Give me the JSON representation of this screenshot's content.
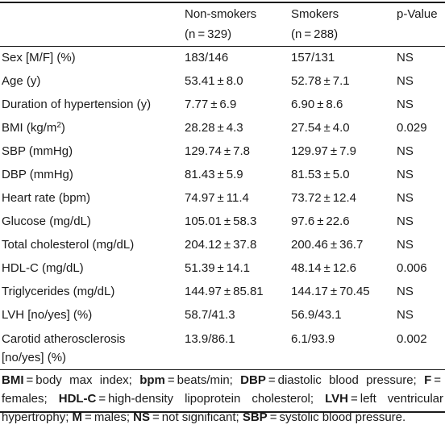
{
  "table": {
    "header": {
      "col1_line1": "Non-smokers",
      "col1_line2": "(n = 329)",
      "col2_line1": "Smokers",
      "col2_line2": "(n = 288)",
      "col3": "p-Value"
    },
    "rows": [
      {
        "label": "Sex [M/F] (%)",
        "non_smokers": "183/146",
        "smokers": "157/131",
        "p": "NS"
      },
      {
        "label": "Age (y)",
        "non_smokers": "53.41 ± 8.0",
        "smokers": "52.78 ± 7.1",
        "p": "NS"
      },
      {
        "label": "Duration of hypertension (y)",
        "non_smokers": "7.77 ± 6.9",
        "smokers": "6.90 ± 8.6",
        "p": "NS"
      },
      {
        "label": "BMI (kg/m",
        "label_sup": "2",
        "label_end": ")",
        "non_smokers": "28.28 ± 4.3",
        "smokers": "27.54 ± 4.0",
        "p": "0.029"
      },
      {
        "label": "SBP (mmHg)",
        "non_smokers": "129.74 ± 7.8",
        "smokers": "129.97 ± 7.9",
        "p": "NS"
      },
      {
        "label": "DBP (mmHg)",
        "non_smokers": "81.43 ± 5.9",
        "smokers": "81.53 ± 5.0",
        "p": "NS"
      },
      {
        "label": "Heart rate (bpm)",
        "non_smokers": "74.97 ± 11.4",
        "smokers": "73.72 ± 12.4",
        "p": "NS"
      },
      {
        "label": "Glucose (mg/dL)",
        "non_smokers": "105.01 ± 58.3",
        "smokers": "97.6 ± 22.6",
        "p": "NS"
      },
      {
        "label": "Total cholesterol (mg/dL)",
        "non_smokers": "204.12 ± 37.8",
        "smokers": "200.46 ± 36.7",
        "p": "NS"
      },
      {
        "label": "HDL-C (mg/dL)",
        "non_smokers": "51.39 ± 14.1",
        "smokers": "48.14 ± 12.6",
        "p": "0.006"
      },
      {
        "label": "Triglycerides (mg/dL)",
        "non_smokers": "144.97 ± 85.81",
        "smokers": "144.17 ± 70.45",
        "p": "NS"
      },
      {
        "label": "LVH [no/yes] (%)",
        "non_smokers": "58.7/41.3",
        "smokers": "56.9/43.1",
        "p": "NS"
      },
      {
        "label": "Carotid atherosclerosis",
        "label_line2": "[no/yes] (%)",
        "non_smokers": "13.9/86.1",
        "smokers": "6.1/93.9",
        "p": "0.002"
      }
    ]
  },
  "footnote": [
    {
      "abbr": "BMI",
      "def": " = body max index; "
    },
    {
      "abbr": "bpm",
      "def": " = beats/min; "
    },
    {
      "abbr": "DBP",
      "def": " = diastolic blood pressure; "
    },
    {
      "abbr": "F",
      "def": " = females; "
    },
    {
      "abbr": "HDL-C",
      "def": " = high-density lipoprotein cholesterol; "
    },
    {
      "abbr": "LVH",
      "def": " = left ventricular hypertrophy; "
    },
    {
      "abbr": "M",
      "def": " = males; "
    },
    {
      "abbr": "NS",
      "def": " = not significant; "
    },
    {
      "abbr": "SBP",
      "def": " = systolic blood pressure."
    }
  ]
}
